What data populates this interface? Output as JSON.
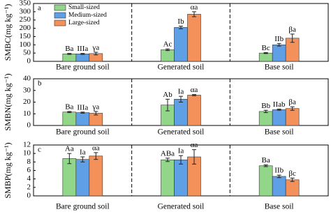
{
  "chart_data": [
    {
      "type": "bar",
      "panel_label": "a",
      "ylabel": "SMBC(mg kg⁻¹)",
      "legend": "upper left",
      "categories": [
        "Bare ground soil",
        "Generated soil",
        "Base soil"
      ],
      "ylim": [
        0,
        350
      ],
      "yticks": [
        0,
        50,
        100,
        150,
        200,
        250,
        300,
        350
      ],
      "series": [
        {
          "name": "Small-sized",
          "color": "#92d68a",
          "values": [
            45,
            70,
            50
          ],
          "errors": [
            3,
            5,
            3
          ],
          "labels": [
            "Ba",
            "Ac",
            "Bc"
          ]
        },
        {
          "name": "Medium-sized",
          "color": "#5f9fe6",
          "values": [
            45,
            205,
            100
          ],
          "errors": [
            3,
            8,
            8
          ],
          "labels": [
            "IIIa",
            "Ib",
            "IIb"
          ]
        },
        {
          "name": "Large-sized",
          "color": "#f4915a",
          "values": [
            47,
            285,
            140
          ],
          "errors": [
            8,
            15,
            25
          ],
          "labels": [
            "γa",
            "αa",
            "βa"
          ]
        }
      ]
    },
    {
      "type": "bar",
      "panel_label": "b",
      "ylabel": "SMBN(mg kg⁻¹)",
      "categories": [
        "Bare ground soil",
        "Generated soil",
        "Base soil"
      ],
      "ylim": [
        0,
        40
      ],
      "yticks": [
        0,
        10,
        20,
        30,
        40
      ],
      "series": [
        {
          "color": "#92d68a",
          "values": [
            11.5,
            17.5,
            12
          ],
          "errors": [
            0.5,
            5,
            1
          ],
          "labels": [
            "Ba",
            "Ab",
            "Bb"
          ]
        },
        {
          "color": "#5f9fe6",
          "values": [
            11,
            22.5,
            13.5
          ],
          "errors": [
            0.5,
            2.5,
            0.5
          ],
          "labels": [
            "IIIa",
            "Ia",
            "IIab"
          ]
        },
        {
          "color": "#f4915a",
          "values": [
            10.5,
            26,
            14.5
          ],
          "errors": [
            1.5,
            0.5,
            1.5
          ],
          "labels": [
            "γa",
            "αa",
            "βa"
          ]
        }
      ]
    },
    {
      "type": "bar",
      "panel_label": "c",
      "ylabel": "SMBP(mg kg⁻¹)",
      "categories": [
        "Bare ground soil",
        "Generated soil",
        "Base soil"
      ],
      "ylim": [
        0,
        12
      ],
      "yticks": [
        0,
        2,
        4,
        6,
        8,
        10,
        12
      ],
      "series": [
        {
          "color": "#92d68a",
          "values": [
            8.8,
            8.5,
            7.1
          ],
          "errors": [
            1.2,
            0.4,
            0.2
          ],
          "labels": [
            "Aa",
            "ABa",
            "Ba"
          ]
        },
        {
          "color": "#5f9fe6",
          "values": [
            8.6,
            8.5,
            4.6
          ],
          "errors": [
            0.6,
            1,
            0.3
          ],
          "labels": [
            "Ia",
            "Ia",
            "IIb"
          ]
        },
        {
          "color": "#f4915a",
          "values": [
            9.4,
            9.2,
            3.8
          ],
          "errors": [
            0.8,
            1.7,
            0.4
          ],
          "labels": [
            "αa",
            "αa",
            "βc"
          ]
        }
      ]
    }
  ]
}
